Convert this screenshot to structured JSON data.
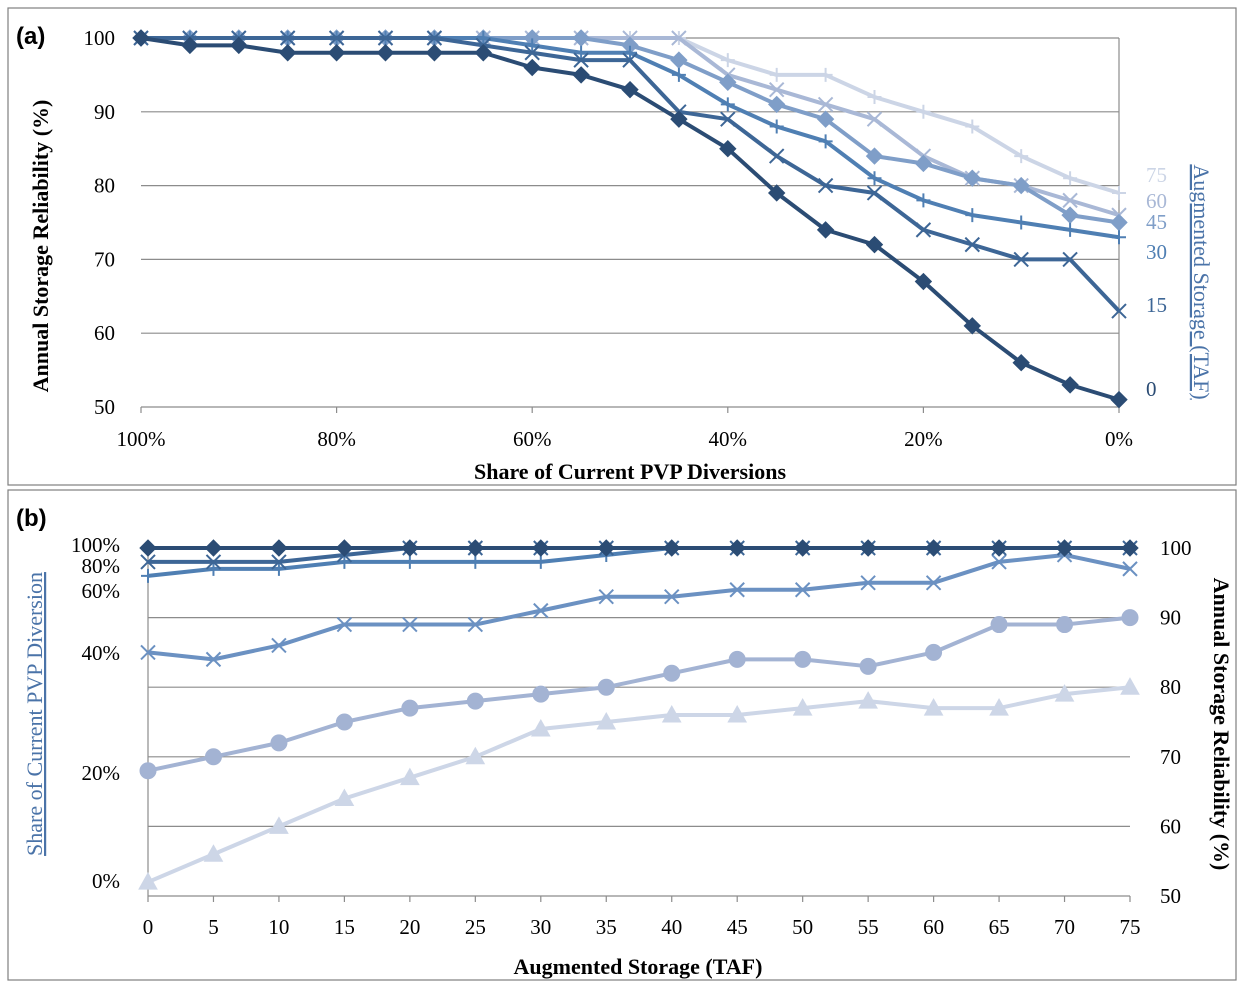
{
  "chart_data": [
    {
      "panel_label": "(a)",
      "type": "line",
      "xlabel": "Share of Current PVP Diversions",
      "ylabel": "Annual Storage Reliability (%)",
      "right_axis_title": "Augmented Storage (TAF)",
      "x": [
        100,
        95,
        90,
        85,
        80,
        75,
        70,
        65,
        60,
        55,
        50,
        45,
        40,
        35,
        30,
        25,
        20,
        15,
        10,
        5,
        0
      ],
      "x_tick_labels": [
        "100%",
        "80%",
        "60%",
        "40%",
        "20%",
        "0%"
      ],
      "x_tick_values": [
        100,
        80,
        60,
        40,
        20,
        0
      ],
      "xlim": [
        100,
        0
      ],
      "ylim": [
        50,
        100
      ],
      "y_ticks": [
        50,
        60,
        70,
        80,
        90,
        100
      ],
      "grid": true,
      "series": [
        {
          "name": "75",
          "color": "#ccd5e6",
          "marker": "plus",
          "values": [
            100,
            100,
            100,
            100,
            100,
            100,
            100,
            100,
            100,
            100,
            100,
            100,
            97,
            95,
            95,
            92,
            90,
            88,
            84,
            81,
            79
          ]
        },
        {
          "name": "60",
          "color": "#a9b8d6",
          "marker": "cross",
          "values": [
            100,
            100,
            100,
            100,
            100,
            100,
            100,
            100,
            100,
            100,
            100,
            100,
            95,
            93,
            91,
            89,
            84,
            81,
            80,
            78,
            76
          ]
        },
        {
          "name": "45",
          "color": "#7f9ec8",
          "marker": "diamond",
          "values": [
            100,
            100,
            100,
            100,
            100,
            100,
            100,
            100,
            100,
            100,
            99,
            97,
            94,
            91,
            89,
            84,
            83,
            81,
            80,
            76,
            75
          ]
        },
        {
          "name": "30",
          "color": "#4f7fb3",
          "marker": "plus",
          "values": [
            100,
            100,
            100,
            100,
            100,
            100,
            100,
            100,
            99,
            98,
            98,
            95,
            91,
            88,
            86,
            81,
            78,
            76,
            75,
            74,
            73
          ]
        },
        {
          "name": "15",
          "color": "#3d6696",
          "marker": "cross",
          "values": [
            100,
            100,
            100,
            100,
            100,
            100,
            100,
            99,
            98,
            97,
            97,
            90,
            89,
            84,
            80,
            79,
            74,
            72,
            70,
            70,
            63
          ]
        },
        {
          "name": "0",
          "color": "#2b4c74",
          "marker": "diamond",
          "values": [
            100,
            99,
            99,
            98,
            98,
            98,
            98,
            98,
            96,
            95,
            93,
            89,
            85,
            79,
            74,
            72,
            67,
            61,
            56,
            53,
            51
          ]
        }
      ]
    },
    {
      "panel_label": "(b)",
      "type": "line",
      "xlabel": "Augmented Storage (TAF)",
      "ylabel_left": "Share of Current PVP Diversion",
      "ylabel_right": "Annual Storage Reliability (%)",
      "x": [
        0,
        5,
        10,
        15,
        20,
        25,
        30,
        35,
        40,
        45,
        50,
        55,
        60,
        65,
        70,
        75
      ],
      "left_tick_labels": [
        {
          "label": "100%",
          "color": "#2b4c74",
          "rel": 100
        },
        {
          "label": "80%",
          "color": "#3d6696",
          "rel": 98
        },
        {
          "label": "60%",
          "color": "#4f7fb3",
          "rel": 94.8
        },
        {
          "label": "40%",
          "color": "#6b91c2",
          "rel": 86
        },
        {
          "label": "20%",
          "color": "#8fa8d0",
          "rel": 68.5
        },
        {
          "label": "0%",
          "color": "#b9c6de",
          "rel": 52.5
        }
      ],
      "ylim": [
        50,
        100
      ],
      "y_ticks": [
        50,
        60,
        70,
        80,
        90,
        100
      ],
      "grid": true,
      "series": [
        {
          "name": "100%",
          "color": "#2b4c74",
          "marker": "diamond",
          "values": [
            100,
            100,
            100,
            100,
            100,
            100,
            100,
            100,
            100,
            100,
            100,
            100,
            100,
            100,
            100,
            100
          ]
        },
        {
          "name": "80%",
          "color": "#3d6696",
          "marker": "cross",
          "values": [
            98,
            98,
            98,
            99,
            100,
            100,
            100,
            100,
            100,
            100,
            100,
            100,
            100,
            100,
            100,
            100
          ]
        },
        {
          "name": "60%",
          "color": "#4f7fb3",
          "marker": "plus",
          "values": [
            96,
            97,
            97,
            98,
            98,
            98,
            98,
            99,
            100,
            100,
            100,
            100,
            100,
            100,
            100,
            100
          ]
        },
        {
          "name": "40%",
          "color": "#6b91c2",
          "marker": "cross",
          "values": [
            85,
            84,
            86,
            89,
            89,
            89,
            91,
            93,
            93,
            94,
            94,
            95,
            95,
            98,
            99,
            97
          ]
        },
        {
          "name": "20%",
          "color": "#a3b3d3",
          "marker": "circle",
          "values": [
            68,
            70,
            72,
            75,
            77,
            78,
            79,
            80,
            82,
            84,
            84,
            83,
            85,
            89,
            89,
            90
          ]
        },
        {
          "name": "0%",
          "color": "#cdd6e7",
          "marker": "triangle",
          "values": [
            52,
            56,
            60,
            64,
            67,
            70,
            74,
            75,
            76,
            76,
            77,
            78,
            77,
            77,
            79,
            80
          ]
        }
      ]
    }
  ]
}
